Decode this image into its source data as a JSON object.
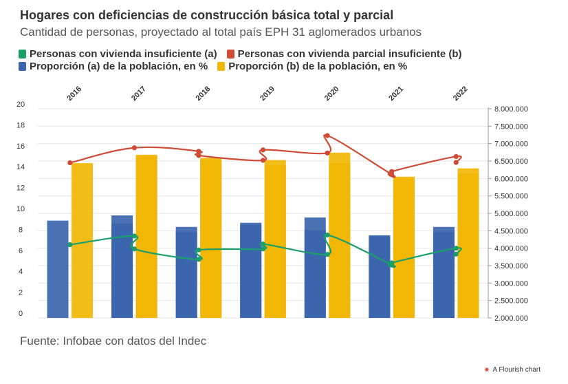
{
  "title": "Hogares con deficiencias de construcción básica total y parcial",
  "subtitle": "Cantidad de personas, proyectado al total país EPH 31 aglomerados urbanos",
  "source": "Fuente: Infobae con datos del Indec",
  "credit": "A Flourish chart",
  "credit_icon": "flourish-logo-icon",
  "legend": [
    {
      "label": "Personas con vivienda insuficiente (a)",
      "color": "#1a9f6b"
    },
    {
      "label": "Personas con vivienda parcial insuficiente (b)",
      "color": "#d04b36"
    },
    {
      "label": "Proporción (a) de la población, en %",
      "color": "#3b65ad"
    },
    {
      "label": "Proporción (b) de la población, en %",
      "color": "#f2b705"
    }
  ],
  "chart_data": {
    "type": "bar",
    "categories": [
      "2016",
      "2017",
      "2018",
      "2019",
      "2020",
      "2021",
      "2022"
    ],
    "x_axis_position": "top",
    "left_axis": {
      "ylim": [
        0,
        20
      ],
      "ticks": [
        "0",
        "2",
        "4",
        "6",
        "8",
        "10",
        "12",
        "14",
        "16",
        "18",
        "20"
      ]
    },
    "right_axis": {
      "ylim": [
        2000000,
        8000000
      ],
      "ticks": [
        "2.000.000",
        "2.500.000",
        "3.000.000",
        "3.500.000",
        "4.000.000",
        "4.500.000",
        "5.000.000",
        "5.500.000",
        "6.000.000",
        "6.500.000",
        "7.000.000",
        "7.500.000",
        "8.000.000"
      ]
    },
    "grid": true,
    "bar_series": [
      {
        "name": "Proporción (a) de la población, en %",
        "color": "#3b65ad",
        "axis": "left",
        "values": [
          9.3,
          9.8,
          8.7,
          9.1,
          9.6,
          7.9,
          8.7
        ],
        "overlay_values": [
          null,
          9.0,
          8.2,
          8.9,
          8.4,
          7.8,
          8.2
        ]
      },
      {
        "name": "Proporción (b) de la población, en %",
        "color": "#f2b705",
        "axis": "left",
        "values": [
          14.8,
          15.6,
          15.3,
          15.1,
          15.8,
          13.5,
          14.3
        ],
        "overlay_values": [
          null,
          15.5,
          15.1,
          14.6,
          14.8,
          13.4,
          13.8
        ]
      }
    ],
    "line_series": [
      {
        "name": "Personas con vivienda insuficiente (a)",
        "color": "#1a9f6b",
        "axis": "right",
        "points": [
          {
            "x": "2016",
            "y": 4100000
          },
          {
            "x": "2017",
            "y": 4350000
          },
          {
            "x": "2017",
            "y": 3980000
          },
          {
            "x": "2018",
            "y": 3680000
          },
          {
            "x": "2018",
            "y": 3950000
          },
          {
            "x": "2019",
            "y": 3980000
          },
          {
            "x": "2019",
            "y": 4120000
          },
          {
            "x": "2020",
            "y": 3820000
          },
          {
            "x": "2020",
            "y": 4380000
          },
          {
            "x": "2021",
            "y": 3530000
          },
          {
            "x": "2021",
            "y": 3580000
          },
          {
            "x": "2022",
            "y": 4000000
          },
          {
            "x": "2022",
            "y": 3830000
          }
        ]
      },
      {
        "name": "Personas con vivienda parcial insuficiente (b)",
        "color": "#d04b36",
        "axis": "right",
        "points": [
          {
            "x": "2016",
            "y": 6450000
          },
          {
            "x": "2017",
            "y": 6880000
          },
          {
            "x": "2018",
            "y": 6780000
          },
          {
            "x": "2018",
            "y": 6660000
          },
          {
            "x": "2019",
            "y": 6520000
          },
          {
            "x": "2019",
            "y": 6820000
          },
          {
            "x": "2020",
            "y": 6730000
          },
          {
            "x": "2020",
            "y": 7230000
          },
          {
            "x": "2021",
            "y": 6120000
          },
          {
            "x": "2021",
            "y": 6200000
          },
          {
            "x": "2022",
            "y": 6630000
          },
          {
            "x": "2022",
            "y": 6460000
          }
        ]
      }
    ]
  }
}
